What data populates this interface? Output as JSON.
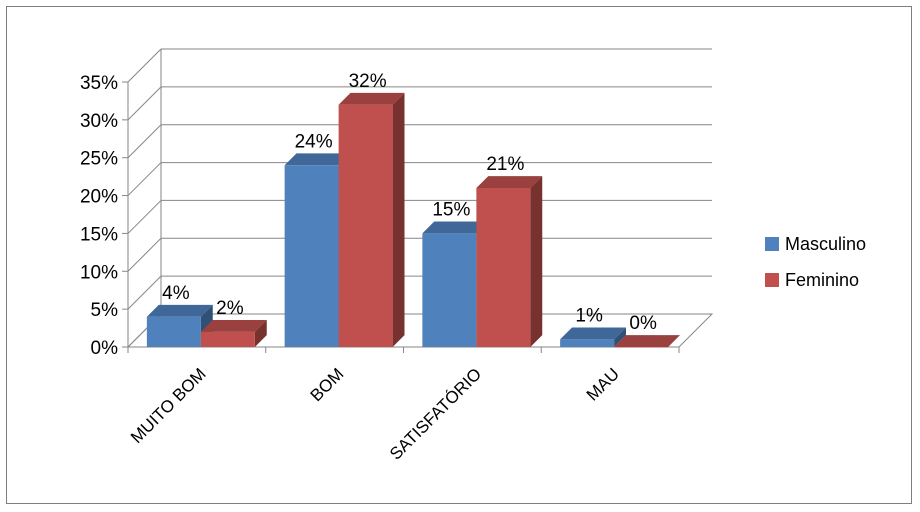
{
  "chart_data": {
    "type": "bar",
    "style": "3d-clustered-column",
    "categories": [
      "MUITO BOM",
      "BOM",
      "SATISFATÓRIO",
      "MAU"
    ],
    "series": [
      {
        "name": "Masculino",
        "values": [
          4,
          24,
          15,
          1
        ],
        "labels": [
          "4%",
          "24%",
          "15%",
          "1%"
        ],
        "color": "#4F81BD"
      },
      {
        "name": "Feminino",
        "values": [
          2,
          32,
          21,
          0
        ],
        "labels": [
          "2%",
          "32%",
          "21%",
          "0%"
        ],
        "color": "#C0504D"
      }
    ],
    "ylim": [
      0,
      35
    ],
    "y_ticks": [
      "0%",
      "5%",
      "10%",
      "15%",
      "20%",
      "25%",
      "30%",
      "35%"
    ],
    "grid": true,
    "legend": "right",
    "title": "",
    "xlabel": "",
    "ylabel": ""
  }
}
